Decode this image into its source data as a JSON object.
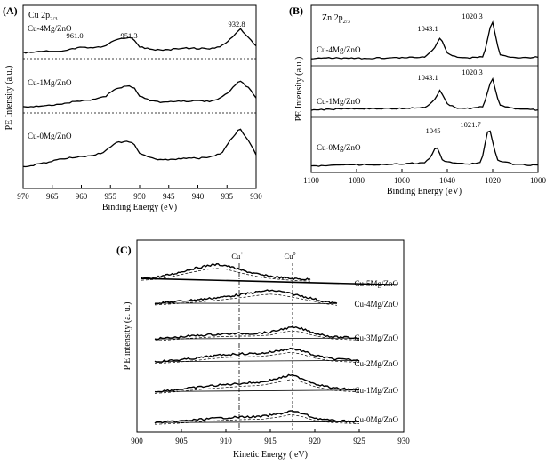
{
  "chart_data": [
    {
      "type": "line",
      "panel": "(A)",
      "title_main": "Cu 2p",
      "title_sub": "2/3",
      "xlabel": "Binding Energy (eV)",
      "ylabel": "PE Intensity (a.u.)",
      "xlim": [
        970,
        930
      ],
      "xticks": [
        970,
        965,
        960,
        955,
        950,
        945,
        940,
        935,
        930
      ],
      "series": [
        {
          "name": "Cu-4Mg/ZnO",
          "x": [
            970,
            968,
            966,
            964,
            962,
            960,
            958,
            956,
            954,
            952,
            951.3,
            950,
            948,
            946,
            944,
            942,
            940,
            938,
            936,
            934,
            932.8,
            931,
            930
          ],
          "values": [
            0.2,
            0.22,
            0.24,
            0.26,
            0.3,
            0.38,
            0.36,
            0.42,
            0.62,
            0.7,
            0.68,
            0.4,
            0.3,
            0.28,
            0.32,
            0.35,
            0.34,
            0.32,
            0.4,
            0.72,
            1.0,
            0.62,
            0.42
          ]
        },
        {
          "name": "Cu-1Mg/ZnO",
          "x": [
            970,
            968,
            966,
            964,
            962,
            960,
            958,
            956,
            954,
            952,
            951,
            950,
            948,
            946,
            944,
            942,
            940,
            938,
            936,
            934,
            932.8,
            931,
            930
          ],
          "values": [
            0.1,
            0.14,
            0.16,
            0.2,
            0.26,
            0.32,
            0.34,
            0.44,
            0.72,
            0.82,
            0.74,
            0.46,
            0.3,
            0.26,
            0.28,
            0.3,
            0.3,
            0.3,
            0.4,
            0.74,
            1.0,
            0.68,
            0.4
          ]
        },
        {
          "name": "Cu-0Mg/ZnO",
          "x": [
            970,
            968,
            966,
            964,
            962,
            960,
            958,
            956,
            954,
            952,
            951,
            950,
            948,
            946,
            944,
            942,
            940,
            938,
            936,
            934,
            932.8,
            931,
            930
          ],
          "values": [
            0.05,
            0.1,
            0.16,
            0.22,
            0.28,
            0.3,
            0.32,
            0.42,
            0.64,
            0.68,
            0.6,
            0.38,
            0.26,
            0.22,
            0.24,
            0.26,
            0.26,
            0.28,
            0.38,
            0.78,
            1.0,
            0.62,
            0.36
          ]
        }
      ],
      "annotations": [
        {
          "text": "961.0",
          "x": 961.0
        },
        {
          "text": "951.3",
          "x": 951.3
        },
        {
          "text": "932.8",
          "x": 932.8
        }
      ]
    },
    {
      "type": "line",
      "panel": "(B)",
      "title_main": "Zn 2p",
      "title_sub": "2/3",
      "xlabel": "Binding Energy (eV)",
      "ylabel": "PE Intensity (a.u.)",
      "xlim": [
        1100,
        1000
      ],
      "xticks": [
        1100,
        1080,
        1060,
        1040,
        1020,
        1000
      ],
      "series": [
        {
          "name": "Cu-4Mg/ZnO",
          "x": [
            1100,
            1090,
            1080,
            1070,
            1060,
            1050,
            1046,
            1043.1,
            1040,
            1035,
            1030,
            1024,
            1020.3,
            1017,
            1010,
            1000
          ],
          "values": [
            0.08,
            0.1,
            0.09,
            0.1,
            0.1,
            0.12,
            0.3,
            0.58,
            0.22,
            0.1,
            0.1,
            0.14,
            1.0,
            0.18,
            0.1,
            0.12
          ]
        },
        {
          "name": "Cu-1Mg/ZnO",
          "x": [
            1100,
            1090,
            1080,
            1070,
            1060,
            1050,
            1046,
            1043.1,
            1040,
            1035,
            1030,
            1024,
            1020.3,
            1017,
            1010,
            1000
          ],
          "values": [
            0.06,
            0.08,
            0.09,
            0.1,
            0.1,
            0.12,
            0.3,
            0.62,
            0.22,
            0.1,
            0.1,
            0.16,
            1.0,
            0.2,
            0.08,
            0.06
          ]
        },
        {
          "name": "Cu-0Mg/ZnO",
          "x": [
            1100,
            1090,
            1080,
            1070,
            1060,
            1050,
            1047,
            1045,
            1042,
            1035,
            1030,
            1025,
            1021.7,
            1018,
            1010,
            1000
          ],
          "values": [
            0.06,
            0.08,
            0.1,
            0.1,
            0.12,
            0.14,
            0.3,
            0.54,
            0.2,
            0.12,
            0.12,
            0.16,
            1.0,
            0.2,
            0.1,
            0.08
          ]
        }
      ],
      "annotations": [
        {
          "text": "1043.1",
          "x": 1043.1
        },
        {
          "text": "1020.3",
          "x": 1020.3
        },
        {
          "text": "1043.1",
          "x": 1043.1
        },
        {
          "text": "1020.3",
          "x": 1020.3
        },
        {
          "text": "1045",
          "x": 1045
        },
        {
          "text": "1021.7",
          "x": 1021.7
        }
      ]
    },
    {
      "type": "line",
      "panel": "(C)",
      "xlabel": "Kinetic Energy ( eV)",
      "ylabel": "P E intensity (a. u.)",
      "xlim": [
        900,
        930
      ],
      "xticks": [
        900,
        905,
        910,
        915,
        920,
        925,
        930
      ],
      "reference_lines": [
        {
          "text": "Cu",
          "sup": "+",
          "x": 911.5
        },
        {
          "text": "Cu",
          "sup": "0",
          "x": 917.5
        }
      ],
      "series": [
        {
          "name": "Cu-5Mg/ZnO",
          "x": [
            900.5,
            902,
            904,
            906,
            908,
            909,
            910,
            912,
            914,
            916,
            918,
            919.5
          ],
          "values": [
            0.18,
            0.22,
            0.36,
            0.56,
            0.72,
            0.76,
            0.72,
            0.5,
            0.32,
            0.22,
            0.16,
            0.14
          ]
        },
        {
          "name": "Cu-4Mg/ZnO",
          "x": [
            902,
            904,
            906,
            908,
            910,
            912,
            914,
            915,
            916,
            918,
            920,
            921,
            922.5
          ],
          "values": [
            0.22,
            0.28,
            0.36,
            0.44,
            0.54,
            0.66,
            0.8,
            0.84,
            0.8,
            0.62,
            0.42,
            0.3,
            0.2
          ]
        },
        {
          "name": "Cu-3Mg/ZnO",
          "x": [
            902,
            904,
            906,
            908,
            910,
            911.5,
            913,
            915,
            916.5,
            917.5,
            918.5,
            920,
            922,
            925
          ],
          "values": [
            0.3,
            0.36,
            0.44,
            0.5,
            0.54,
            0.56,
            0.56,
            0.62,
            0.8,
            0.86,
            0.8,
            0.58,
            0.4,
            0.34
          ]
        },
        {
          "name": "Cu-2Mg/ZnO",
          "x": [
            902,
            904,
            906,
            908,
            910,
            912,
            914,
            916,
            917.3,
            918.5,
            920,
            922,
            925
          ],
          "values": [
            0.24,
            0.3,
            0.38,
            0.5,
            0.6,
            0.64,
            0.66,
            0.8,
            0.92,
            0.8,
            0.56,
            0.38,
            0.3
          ]
        },
        {
          "name": "Cu-1Mg/ZnO",
          "x": [
            902,
            904,
            906,
            908,
            910,
            912,
            914,
            916,
            917.3,
            918.5,
            920,
            922,
            925
          ],
          "values": [
            0.2,
            0.26,
            0.34,
            0.42,
            0.48,
            0.54,
            0.58,
            0.74,
            0.86,
            0.74,
            0.52,
            0.34,
            0.26
          ]
        },
        {
          "name": "Cu-0Mg/ZnO",
          "x": [
            902,
            904,
            906,
            908,
            910,
            912,
            914,
            916,
            917.3,
            918.5,
            920,
            922,
            925
          ],
          "values": [
            0.18,
            0.22,
            0.3,
            0.38,
            0.44,
            0.48,
            0.5,
            0.64,
            0.8,
            0.68,
            0.42,
            0.28,
            0.22
          ]
        }
      ]
    }
  ]
}
